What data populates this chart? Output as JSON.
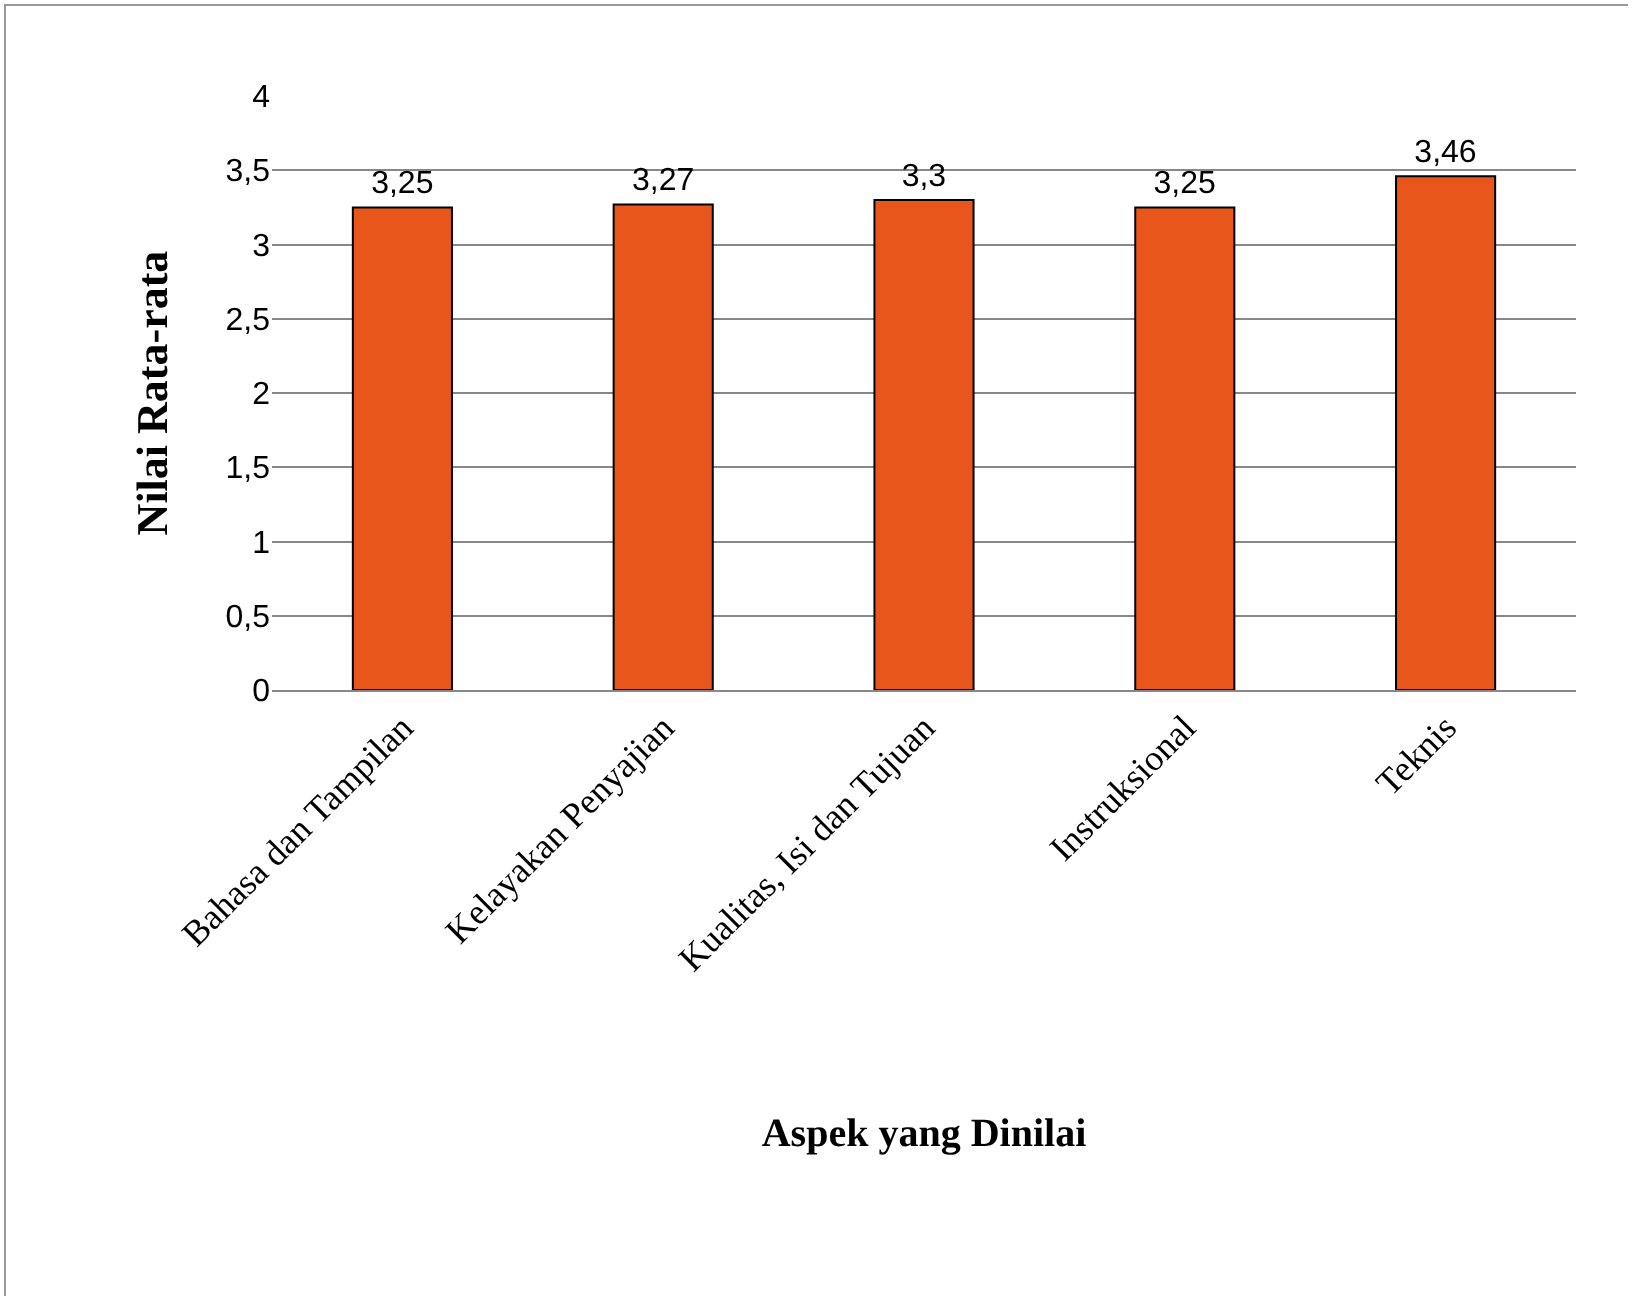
{
  "chart_data": {
    "type": "bar",
    "xlabel": "Aspek yang Dinilai",
    "ylabel": "Nilai Rata-rata",
    "categories": [
      "Bahasa dan Tampilan",
      "Kelayakan Penyajian",
      "Kualitas, Isi dan Tujuan",
      "Instruksional",
      "Teknis"
    ],
    "values": [
      3.25,
      3.27,
      3.3,
      3.25,
      3.46
    ],
    "value_labels": [
      "3,25",
      "3,27",
      "3,3",
      "3,25",
      "3,46"
    ],
    "color": "#e8561c",
    "ylim": [
      0,
      4
    ],
    "yticks": [
      0,
      {
        "value": 0.5,
        "label": "0,5"
      },
      1,
      {
        "value": 1.5,
        "label": "1,5"
      },
      2,
      {
        "value": 2.5,
        "label": "2,5"
      },
      3,
      {
        "value": 3.5,
        "label": "3,5"
      },
      4
    ],
    "grid": "y",
    "legend": false
  }
}
